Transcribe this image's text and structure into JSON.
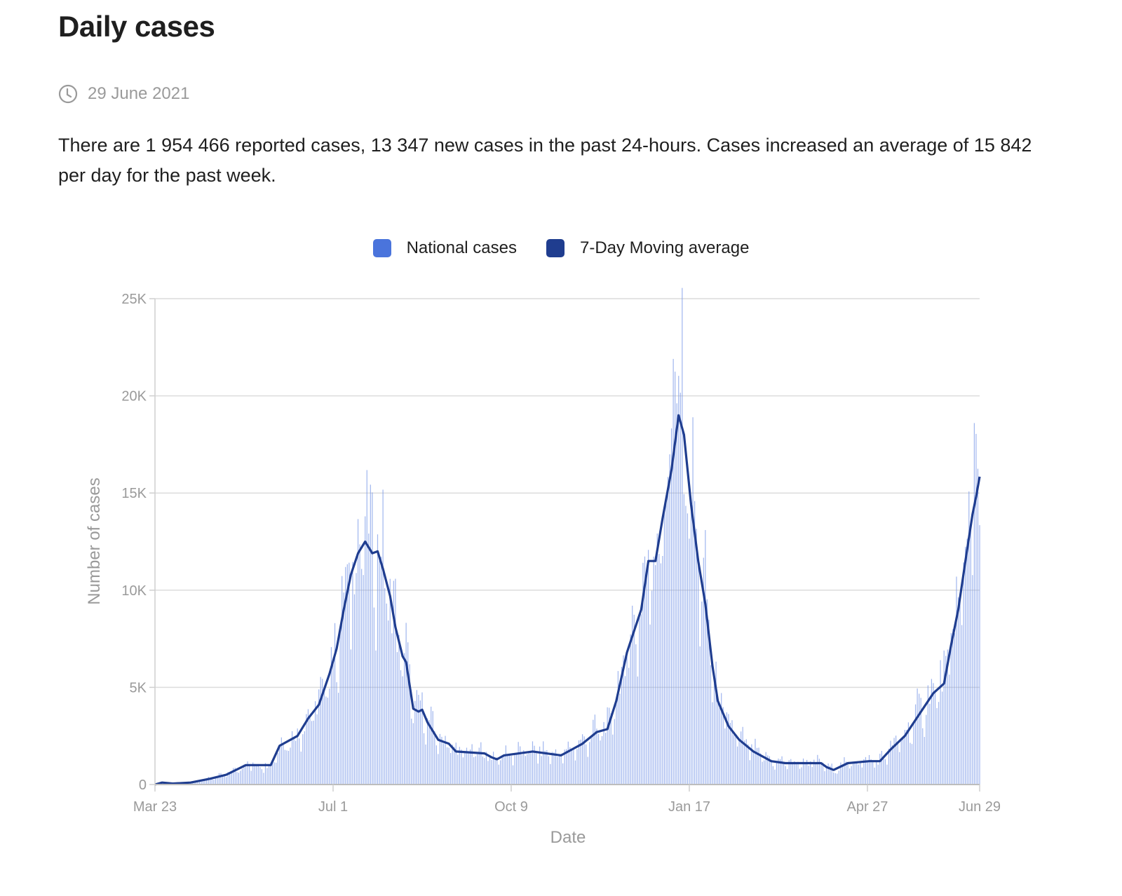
{
  "header": {
    "title": "Daily cases",
    "date": "29 June 2021",
    "date_icon": "clock-icon",
    "summary": "There are 1 954 466 reported cases, 13 347 new cases in the past 24-hours. Cases increased an average of 15 842 per day for the past week."
  },
  "chart_data": {
    "type": "bar",
    "title": "Daily cases",
    "xlabel": "Date",
    "ylabel": "Number of cases",
    "ylim": [
      0,
      25000
    ],
    "grid": true,
    "legend_placement": "top-center",
    "x_start": "2020-03-23",
    "x_end": "2021-06-29",
    "num_days": 464,
    "x_ticks": [
      {
        "day": 0,
        "label": "Mar 23"
      },
      {
        "day": 100,
        "label": "Jul 1"
      },
      {
        "day": 200,
        "label": "Oct 9"
      },
      {
        "day": 300,
        "label": "Jan 17"
      },
      {
        "day": 400,
        "label": "Apr 27"
      },
      {
        "day": 463,
        "label": "Jun 29"
      }
    ],
    "y_ticks": [
      {
        "value": 0,
        "label": "0"
      },
      {
        "value": 5000,
        "label": "5K"
      },
      {
        "value": 10000,
        "label": "10K"
      },
      {
        "value": 15000,
        "label": "15K"
      },
      {
        "value": 20000,
        "label": "20K"
      },
      {
        "value": 25000,
        "label": "25K"
      }
    ],
    "series": [
      {
        "name": "National cases",
        "type": "bar",
        "color": "#4a74dc",
        "peaks": [
          {
            "day": 118,
            "value": 13800
          },
          {
            "day": 291,
            "value": 21900
          },
          {
            "day": 460,
            "value": 18600
          },
          {
            "day": 463,
            "value": 13347
          }
        ]
      },
      {
        "name": "7-Day Moving average",
        "type": "line",
        "color": "#1f3d8f",
        "points": [
          [
            0,
            0
          ],
          [
            4,
            100
          ],
          [
            10,
            50
          ],
          [
            20,
            100
          ],
          [
            31,
            300
          ],
          [
            40,
            500
          ],
          [
            51,
            1000
          ],
          [
            65,
            1000
          ],
          [
            70,
            2000
          ],
          [
            80,
            2500
          ],
          [
            86,
            3400
          ],
          [
            92,
            4100
          ],
          [
            98,
            5700
          ],
          [
            102,
            7000
          ],
          [
            106,
            9000
          ],
          [
            110,
            10800
          ],
          [
            114,
            11900
          ],
          [
            118,
            12500
          ],
          [
            122,
            11900
          ],
          [
            125,
            12000
          ],
          [
            128,
            11100
          ],
          [
            132,
            9700
          ],
          [
            135,
            8100
          ],
          [
            139,
            6600
          ],
          [
            141,
            6300
          ],
          [
            145,
            3900
          ],
          [
            148,
            3750
          ],
          [
            150,
            3850
          ],
          [
            153,
            3200
          ],
          [
            159,
            2300
          ],
          [
            165,
            2100
          ],
          [
            169,
            1700
          ],
          [
            185,
            1600
          ],
          [
            189,
            1400
          ],
          [
            192,
            1300
          ],
          [
            196,
            1500
          ],
          [
            212,
            1700
          ],
          [
            228,
            1500
          ],
          [
            234,
            1800
          ],
          [
            240,
            2100
          ],
          [
            248,
            2700
          ],
          [
            254,
            2850
          ],
          [
            259,
            4300
          ],
          [
            265,
            6800
          ],
          [
            269,
            7900
          ],
          [
            273,
            9000
          ],
          [
            277,
            11500
          ],
          [
            281,
            11500
          ],
          [
            285,
            13700
          ],
          [
            290,
            16200
          ],
          [
            294,
            19000
          ],
          [
            297,
            18000
          ],
          [
            301,
            14400
          ],
          [
            305,
            11500
          ],
          [
            309,
            9300
          ],
          [
            313,
            6100
          ],
          [
            316,
            4300
          ],
          [
            322,
            3000
          ],
          [
            328,
            2300
          ],
          [
            336,
            1700
          ],
          [
            346,
            1200
          ],
          [
            354,
            1100
          ],
          [
            366,
            1100
          ],
          [
            374,
            1100
          ],
          [
            377,
            900
          ],
          [
            381,
            750
          ],
          [
            389,
            1100
          ],
          [
            401,
            1200
          ],
          [
            407,
            1200
          ],
          [
            413,
            1800
          ],
          [
            421,
            2500
          ],
          [
            429,
            3600
          ],
          [
            437,
            4700
          ],
          [
            443,
            5200
          ],
          [
            447,
            7200
          ],
          [
            451,
            9000
          ],
          [
            455,
            11500
          ],
          [
            459,
            13900
          ],
          [
            461,
            14800
          ],
          [
            463,
            15842
          ]
        ]
      }
    ]
  }
}
